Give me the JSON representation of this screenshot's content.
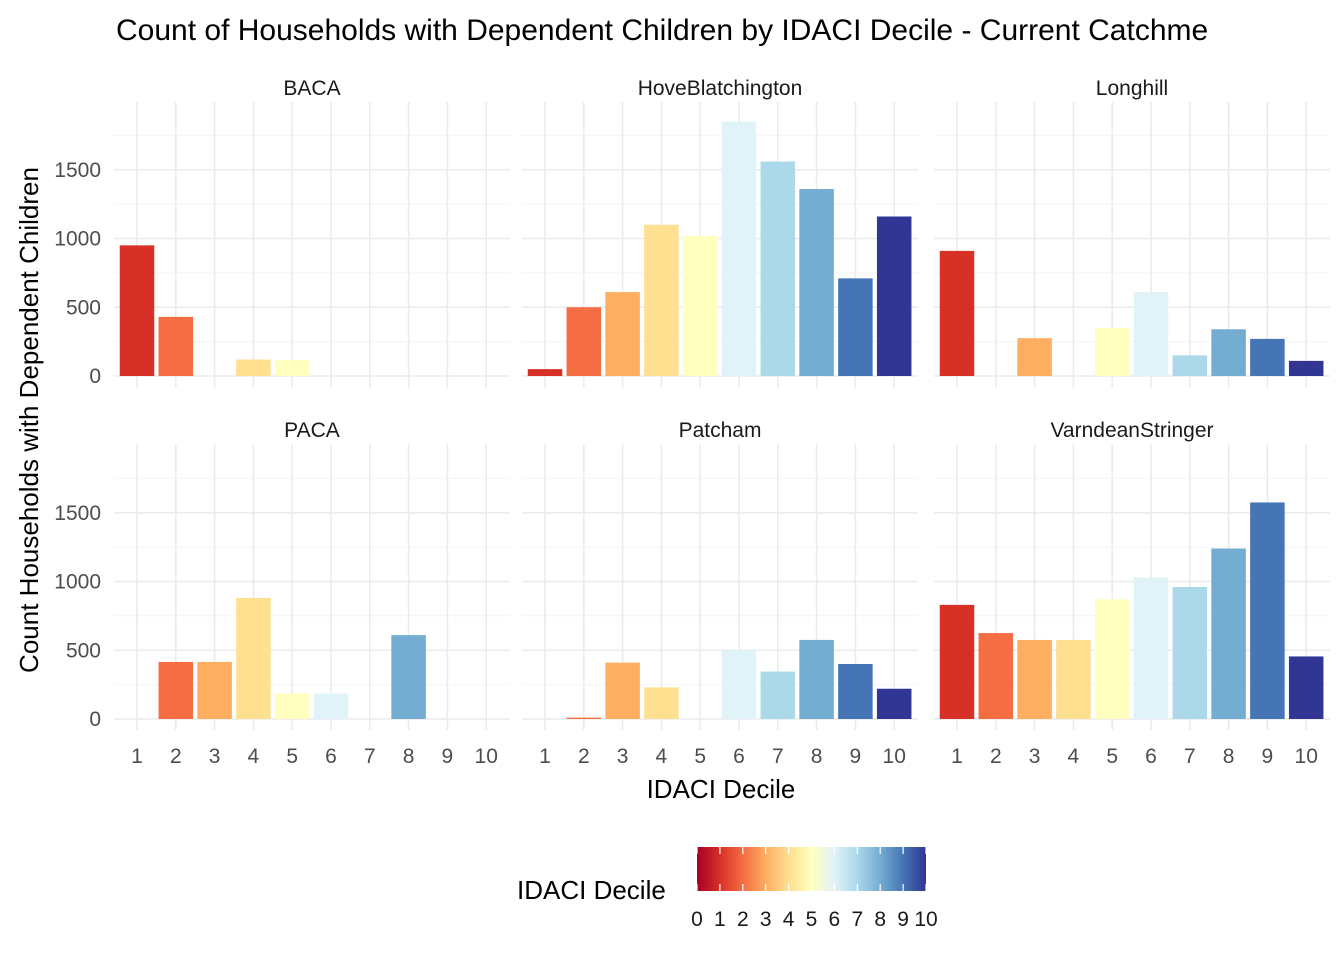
{
  "chart_data": {
    "type": "bar",
    "title": "Count of Households with Dependent Children by IDACI Decile - Current Catchme",
    "xlabel": "IDACI Decile",
    "ylabel": "Count Households with Dependent Children",
    "categories": [
      "1",
      "2",
      "3",
      "4",
      "5",
      "6",
      "7",
      "8",
      "9",
      "10"
    ],
    "yticks": [
      "0",
      "500",
      "1000",
      "1500"
    ],
    "ylim": [
      0,
      1850
    ],
    "grid": true,
    "legend": {
      "title": "IDACI Decile",
      "position": "bottom",
      "labels": [
        "0",
        "1",
        "2",
        "3",
        "4",
        "5",
        "6",
        "7",
        "8",
        "9",
        "10"
      ],
      "palette": [
        "#a50026",
        "#d73027",
        "#f46d43",
        "#fdae61",
        "#fee090",
        "#ffffbf",
        "#e0f3f8",
        "#abd9e9",
        "#74add1",
        "#4575b4",
        "#313695"
      ]
    },
    "panels": [
      {
        "name": "BACA",
        "values": [
          950,
          430,
          0,
          120,
          115,
          0,
          0,
          0,
          0,
          0
        ]
      },
      {
        "name": "HoveBlatchington",
        "values": [
          50,
          500,
          610,
          1100,
          1020,
          1850,
          1560,
          1360,
          710,
          1160
        ]
      },
      {
        "name": "Longhill",
        "values": [
          910,
          0,
          275,
          0,
          350,
          610,
          150,
          340,
          270,
          110
        ]
      },
      {
        "name": "PACA",
        "values": [
          0,
          415,
          415,
          880,
          185,
          185,
          0,
          610,
          0,
          0
        ]
      },
      {
        "name": "Patcham",
        "values": [
          0,
          10,
          410,
          230,
          0,
          500,
          345,
          575,
          400,
          220
        ]
      },
      {
        "name": "VarndeanStringer",
        "values": [
          830,
          625,
          575,
          575,
          870,
          1030,
          960,
          1240,
          1575,
          455
        ]
      }
    ]
  }
}
